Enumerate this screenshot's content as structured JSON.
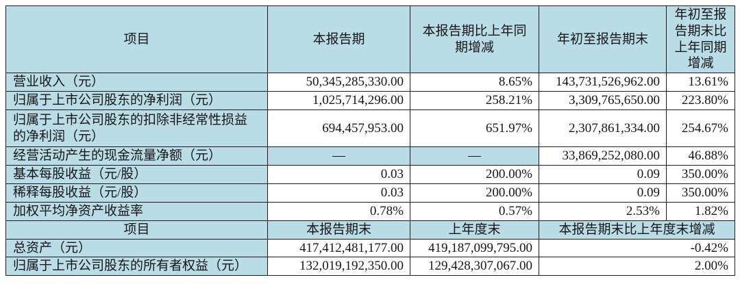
{
  "colors": {
    "header_bg": "#b9dce6",
    "border": "#1a1a1a",
    "text": "#161616",
    "page_bg": "#ffffff"
  },
  "section_quarter": {
    "headers": {
      "item": "项目",
      "current_period": "本报告期",
      "current_vs_prior_year": "本报告期比上年同期增减",
      "ytd": "年初至报告期末",
      "ytd_vs_prior_year": "年初至报告期末比上年同期增减"
    },
    "rows": [
      {
        "label": "营业收入（元）",
        "current": "50,345,285,330.00",
        "yoy": "8.65%",
        "ytd": "143,731,526,962.00",
        "ytd_yoy": "13.61%"
      },
      {
        "label": "归属于上市公司股东的净利润（元）",
        "current": "1,025,714,296.00",
        "yoy": "258.21%",
        "ytd": "3,309,765,650.00",
        "ytd_yoy": "223.80%"
      },
      {
        "label": "归属于上市公司股东的扣除非经常性损益的净利润（元）",
        "current": "694,457,953.00",
        "yoy": "651.97%",
        "ytd": "2,307,861,334.00",
        "ytd_yoy": "254.67%"
      },
      {
        "label": "经营活动产生的现金流量净额（元）",
        "current": "—",
        "yoy": "—",
        "ytd": "33,869,252,080.00",
        "ytd_yoy": "46.88%"
      },
      {
        "label": "基本每股收益（元/股）",
        "current": "0.03",
        "yoy": "200.00%",
        "ytd": "0.09",
        "ytd_yoy": "350.00%"
      },
      {
        "label": "稀释每股收益（元/股）",
        "current": "0.03",
        "yoy": "200.00%",
        "ytd": "0.09",
        "ytd_yoy": "350.00%"
      },
      {
        "label": "加权平均净资产收益率",
        "current": "0.78%",
        "yoy": "0.57%",
        "ytd": "2.53%",
        "ytd_yoy": "1.82%"
      }
    ]
  },
  "section_balance": {
    "headers": {
      "item": "项目",
      "end_of_period": "本报告期末",
      "end_of_prior_year": "上年度末",
      "change": "本报告期末比上年度末增减"
    },
    "rows": [
      {
        "label": "总资产（元）",
        "end_of_period": "417,412,481,177.00",
        "end_of_prior_year": "419,187,099,795.00",
        "change": "-0.42%"
      },
      {
        "label": "归属于上市公司股东的所有者权益（元）",
        "end_of_period": "132,019,192,350.00",
        "end_of_prior_year": "129,428,307,067.00",
        "change": "2.00%"
      }
    ]
  }
}
